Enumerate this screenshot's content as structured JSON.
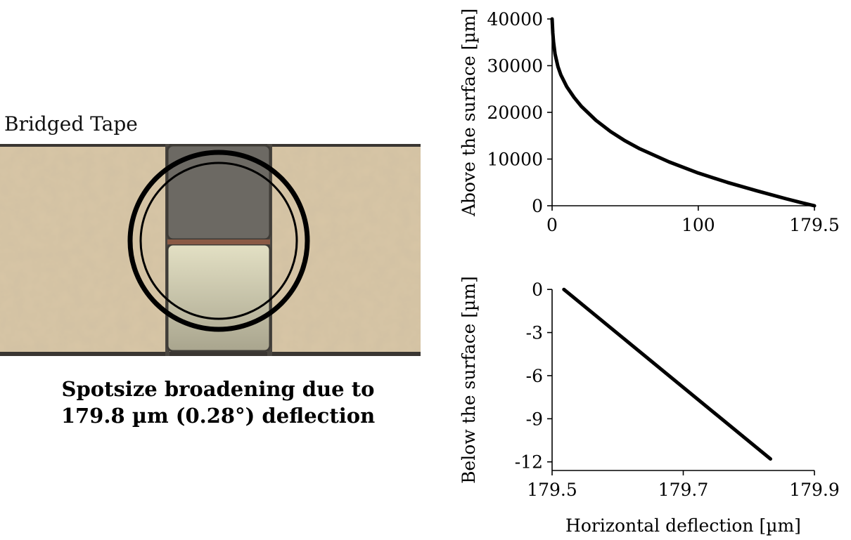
{
  "photo": {
    "label": "Bridged Tape",
    "caption_line1": "Spotsize broadening due to",
    "caption_line2": "179.8 µm (0.28°) deflection",
    "colors": {
      "background": "#d9c7a6",
      "dark_block": "#6e6b63",
      "light_block": "#c9c4a4",
      "ring": "#000000"
    }
  },
  "chart_data": [
    {
      "type": "line",
      "ylabel": "Above the surface [µm]",
      "xlabel": "",
      "xlim": [
        0,
        179.5
      ],
      "ylim": [
        0,
        40000
      ],
      "xticks": [
        "0",
        "100",
        "179.5"
      ],
      "yticks": [
        "0",
        "10000",
        "20000",
        "30000",
        "40000"
      ],
      "grid": false,
      "series": [
        {
          "x": [
            0,
            0.5,
            1,
            2,
            4,
            6,
            10,
            15,
            20,
            30,
            40,
            50,
            60,
            80,
            100,
            120,
            140,
            160,
            170,
            179.5
          ],
          "y": [
            40000,
            37000,
            35000,
            32500,
            29800,
            28000,
            25500,
            23200,
            21300,
            18300,
            15900,
            13900,
            12200,
            9400,
            7000,
            5000,
            3200,
            1500,
            700,
            0
          ]
        }
      ]
    },
    {
      "type": "line",
      "ylabel": "Below the surface [µm]",
      "xlabel": "Horizontal deflection [µm]",
      "xlim": [
        179.5,
        179.9
      ],
      "ylim": [
        -12.6,
        0.4
      ],
      "xticks": [
        "179.5",
        "179.7",
        "179.9"
      ],
      "yticks": [
        "0",
        "-3",
        "-6",
        "-9",
        "-12"
      ],
      "grid": false,
      "series": [
        {
          "x": [
            179.518,
            179.833
          ],
          "y": [
            0,
            -11.8
          ]
        }
      ]
    }
  ]
}
